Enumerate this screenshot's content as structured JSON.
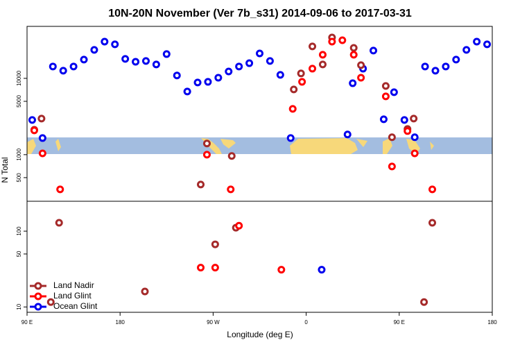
{
  "chart_data": [
    {
      "type": "scatter",
      "title": "10N-20N November (Ver 7b_s31)   2014-09-06 to 2017-03-31",
      "ylabel": "N Total",
      "xlim": [
        90,
        540
      ],
      "ylim": [
        245,
        48000
      ],
      "log_y": true,
      "yticks": [
        500,
        1000,
        5000,
        10000
      ],
      "series": [
        {
          "color": "#0000ee",
          "x": [
            95,
            105,
            115,
            125,
            135,
            145,
            155,
            165,
            175,
            185,
            195,
            205,
            215,
            225,
            235,
            245,
            255,
            265,
            275,
            285,
            295,
            305,
            315,
            325,
            335,
            345,
            400,
            405,
            415,
            425,
            435,
            445,
            455,
            465,
            475,
            485,
            495,
            505,
            515,
            525,
            535
          ],
          "values": [
            2850,
            1650,
            14300,
            12600,
            14300,
            17600,
            23600,
            30300,
            27900,
            18000,
            16500,
            16900,
            15200,
            20800,
            10900,
            6720,
            8820,
            9000,
            10200,
            12300,
            14300,
            15800,
            21200,
            16900,
            11100,
            1650,
            1840,
            8630,
            13400,
            23100,
            2910,
            6580,
            2850,
            1690,
            14300,
            12600,
            14300,
            17600,
            23600,
            30300,
            27900
          ]
        },
        {
          "color": "#a52a2a",
          "x": [
            97,
            104,
            258,
            264,
            288,
            348,
            355,
            366,
            376,
            385,
            406,
            413,
            437,
            443,
            458,
            464
          ],
          "values": [
            2120,
            2970,
            406,
            1400,
            960,
            7160,
            11600,
            26200,
            15200,
            34300,
            25100,
            14900,
            7940,
            1690,
            2170,
            2970
          ]
        },
        {
          "color": "#ff0000",
          "x": [
            97,
            105,
            122,
            264,
            287,
            347,
            356,
            366,
            376,
            385,
            395,
            406,
            413,
            437,
            443,
            458,
            465,
            482
          ],
          "values": [
            2080,
            1040,
            351,
            1000,
            351,
            3980,
            9000,
            13400,
            20400,
            30300,
            31600,
            20400,
            10200,
            5800,
            700,
            2040,
            1040,
            351
          ]
        }
      ]
    },
    {
      "type": "scatter",
      "xlabel": "Longitude (deg E)",
      "xlim": [
        90,
        540
      ],
      "ylim": [
        8.5,
        248
      ],
      "log_y": true,
      "yticks": [
        10,
        50,
        100
      ],
      "xticks": [
        {
          "value": 90,
          "label": "90 E"
        },
        180,
        {
          "value": 270,
          "label": "90 W"
        },
        {
          "value": 360,
          "label": "0"
        },
        {
          "value": 450,
          "label": "90 E"
        },
        {
          "value": 540,
          "label": "180"
        }
      ],
      "legend": "lower left",
      "series": [
        {
          "name": "Land Nadir",
          "color": "#a52a2a",
          "x": [
            113,
            121,
            204,
            272,
            292,
            474,
            482
          ],
          "values": [
            11.6,
            129,
            16,
            67,
            111,
            11.6,
            129
          ]
        },
        {
          "name": "Land Glint",
          "color": "#ff0000",
          "x": [
            258,
            272,
            295,
            336
          ],
          "values": [
            33,
            33,
            118,
            31
          ]
        },
        {
          "name": "Ocean Glint",
          "color": "#0000ee",
          "x": [
            375
          ],
          "values": [
            31
          ]
        }
      ]
    }
  ]
}
